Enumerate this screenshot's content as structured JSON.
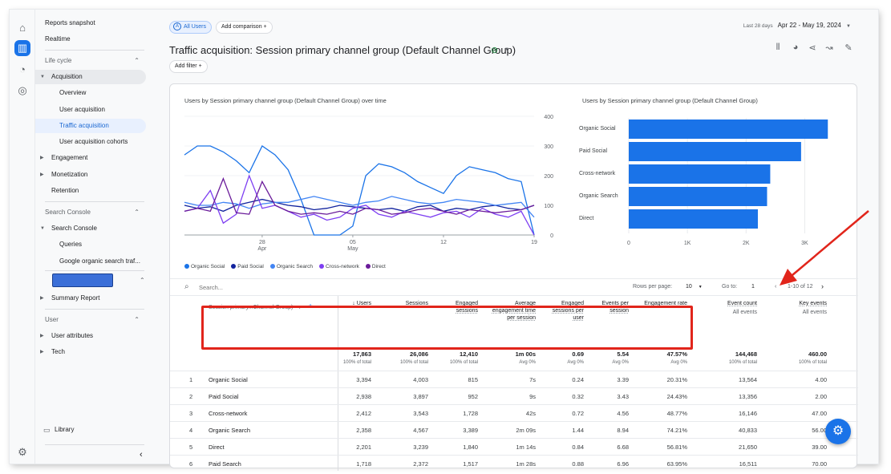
{
  "nav": {
    "items": [
      {
        "label": "Reports snapshot"
      },
      {
        "label": "Realtime"
      },
      {
        "label": "Life cycle"
      },
      {
        "label": "Acquisition"
      },
      {
        "label": "Overview"
      },
      {
        "label": "User acquisition"
      },
      {
        "label": "Traffic acquisition"
      },
      {
        "label": "User acquisition cohorts"
      },
      {
        "label": "Engagement"
      },
      {
        "label": "Monetization"
      },
      {
        "label": "Retention"
      },
      {
        "label": "Search Console"
      },
      {
        "label": "Search Console"
      },
      {
        "label": "Queries"
      },
      {
        "label": "Google organic search traf..."
      },
      {
        "label": "Summary Report"
      },
      {
        "label": "User"
      },
      {
        "label": "User attributes"
      },
      {
        "label": "Tech"
      },
      {
        "label": "Library"
      }
    ]
  },
  "header": {
    "segment_chip": "All Users",
    "comparison_chip": "Add comparison",
    "date_label": "Last 28 days",
    "date_range": "Apr 22 - May 19, 2024",
    "title": "Traffic acquisition: Session primary channel group (Default Channel Group)",
    "add_filter": "Add filter"
  },
  "line_chart": {
    "title": "Users by Session primary channel group (Default Channel Group) over time",
    "y_ticks": [
      "400",
      "300",
      "200",
      "100",
      "0"
    ],
    "x_ticks": [
      {
        "day": "28",
        "month": "Apr"
      },
      {
        "day": "05",
        "month": "May"
      },
      {
        "day": "12",
        "month": ""
      },
      {
        "day": "19",
        "month": ""
      }
    ],
    "legend": [
      "Organic Social",
      "Paid Social",
      "Organic Search",
      "Cross-network",
      "Direct"
    ]
  },
  "bar_chart": {
    "title": "Users by Session primary channel group (Default Channel Group)",
    "x_ticks": [
      "0",
      "1K",
      "2K",
      "3K"
    ]
  },
  "chart_data": [
    {
      "type": "line",
      "title": "Users by Session primary channel group (Default Channel Group) over time",
      "x": [
        "Apr 22",
        "Apr 23",
        "Apr 24",
        "Apr 25",
        "Apr 26",
        "Apr 27",
        "Apr 28",
        "Apr 29",
        "Apr 30",
        "May 1",
        "May 2",
        "May 3",
        "May 4",
        "May 5",
        "May 6",
        "May 7",
        "May 8",
        "May 9",
        "May 10",
        "May 11",
        "May 12",
        "May 13",
        "May 14",
        "May 15",
        "May 16",
        "May 17",
        "May 18",
        "May 19"
      ],
      "ylim": [
        0,
        400
      ],
      "series": [
        {
          "name": "Organic Social",
          "color": "#1a73e8",
          "values": [
            270,
            300,
            300,
            280,
            250,
            210,
            300,
            270,
            220,
            120,
            0,
            0,
            0,
            30,
            200,
            240,
            230,
            210,
            180,
            160,
            140,
            200,
            230,
            220,
            210,
            190,
            180,
            0
          ]
        },
        {
          "name": "Paid Social",
          "color": "#12239e",
          "values": [
            100,
            90,
            95,
            80,
            100,
            110,
            120,
            110,
            100,
            95,
            85,
            90,
            100,
            95,
            90,
            85,
            90,
            80,
            95,
            100,
            80,
            90,
            85,
            95,
            100,
            90,
            85,
            100
          ]
        },
        {
          "name": "Organic Search",
          "color": "#4285f4",
          "values": [
            110,
            100,
            100,
            110,
            105,
            90,
            105,
            110,
            110,
            120,
            130,
            120,
            110,
            100,
            110,
            115,
            130,
            120,
            110,
            105,
            110,
            120,
            115,
            110,
            100,
            105,
            110,
            60
          ]
        },
        {
          "name": "Cross-network",
          "color": "#7e3ff2",
          "values": [
            80,
            90,
            150,
            40,
            70,
            200,
            90,
            100,
            80,
            60,
            70,
            50,
            60,
            90,
            100,
            70,
            60,
            80,
            70,
            60,
            75,
            80,
            60,
            90,
            70,
            60,
            80,
            0
          ]
        },
        {
          "name": "Direct",
          "color": "#6a1b9a",
          "values": [
            80,
            90,
            80,
            190,
            75,
            70,
            180,
            100,
            80,
            70,
            75,
            70,
            80,
            70,
            90,
            85,
            70,
            75,
            85,
            90,
            80,
            70,
            85,
            80,
            75,
            80,
            85,
            100
          ]
        }
      ]
    },
    {
      "type": "bar",
      "title": "Users by Session primary channel group (Default Channel Group)",
      "categories": [
        "Organic Social",
        "Paid Social",
        "Cross-network",
        "Organic Search",
        "Direct"
      ],
      "values": [
        3394,
        2938,
        2412,
        2358,
        2201
      ],
      "xlim": [
        0,
        3500
      ],
      "color": "#1a73e8"
    }
  ],
  "table": {
    "search_placeholder": "Search...",
    "rows_per_page_label": "Rows per page:",
    "rows_per_page": "10",
    "goto_label": "Go to:",
    "goto_value": "1",
    "page_range": "1-10 of 12",
    "dimension_header": "Session primary...Channel Group)",
    "headers": [
      {
        "label": "↓ Users",
        "sub": ""
      },
      {
        "label": "Sessions",
        "sub": ""
      },
      {
        "label": "Engaged sessions",
        "sub": ""
      },
      {
        "label": "Average engagement time per session",
        "sub": ""
      },
      {
        "label": "Engaged sessions per user",
        "sub": ""
      },
      {
        "label": "Events per session",
        "sub": ""
      },
      {
        "label": "Engagement rate",
        "sub": ""
      },
      {
        "label": "Event count",
        "sub": "All events"
      },
      {
        "label": "Key events",
        "sub": "All events"
      }
    ],
    "totals": [
      {
        "value": "17,863",
        "sub": "100% of total"
      },
      {
        "value": "26,086",
        "sub": "100% of total"
      },
      {
        "value": "12,410",
        "sub": "100% of total"
      },
      {
        "value": "1m 00s",
        "sub": "Avg 0%"
      },
      {
        "value": "0.69",
        "sub": "Avg 0%"
      },
      {
        "value": "5.54",
        "sub": "Avg 0%"
      },
      {
        "value": "47.57%",
        "sub": "Avg 0%"
      },
      {
        "value": "144,468",
        "sub": "100% of total"
      },
      {
        "value": "460.00",
        "sub": "100% of total"
      }
    ],
    "rows": [
      {
        "idx": "1",
        "name": "Organic Social",
        "cells": [
          "3,394",
          "4,003",
          "815",
          "7s",
          "0.24",
          "3.39",
          "20.31%",
          "13,564",
          "4.00"
        ]
      },
      {
        "idx": "2",
        "name": "Paid Social",
        "cells": [
          "2,938",
          "3,897",
          "952",
          "9s",
          "0.32",
          "3.43",
          "24.43%",
          "13,356",
          "2.00"
        ]
      },
      {
        "idx": "3",
        "name": "Cross-network",
        "cells": [
          "2,412",
          "3,543",
          "1,728",
          "42s",
          "0.72",
          "4.56",
          "48.77%",
          "16,146",
          "47.00"
        ]
      },
      {
        "idx": "4",
        "name": "Organic Search",
        "cells": [
          "2,358",
          "4,567",
          "3,389",
          "2m 09s",
          "1.44",
          "8.94",
          "74.21%",
          "40,833",
          "56.00"
        ]
      },
      {
        "idx": "5",
        "name": "Direct",
        "cells": [
          "2,201",
          "3,239",
          "1,840",
          "1m 14s",
          "0.84",
          "6.68",
          "56.81%",
          "21,650",
          "39.00"
        ]
      },
      {
        "idx": "6",
        "name": "Paid Search",
        "cells": [
          "1,718",
          "2,372",
          "1,517",
          "1m 28s",
          "0.88",
          "6.96",
          "63.95%",
          "16,511",
          "70.00"
        ]
      }
    ]
  }
}
